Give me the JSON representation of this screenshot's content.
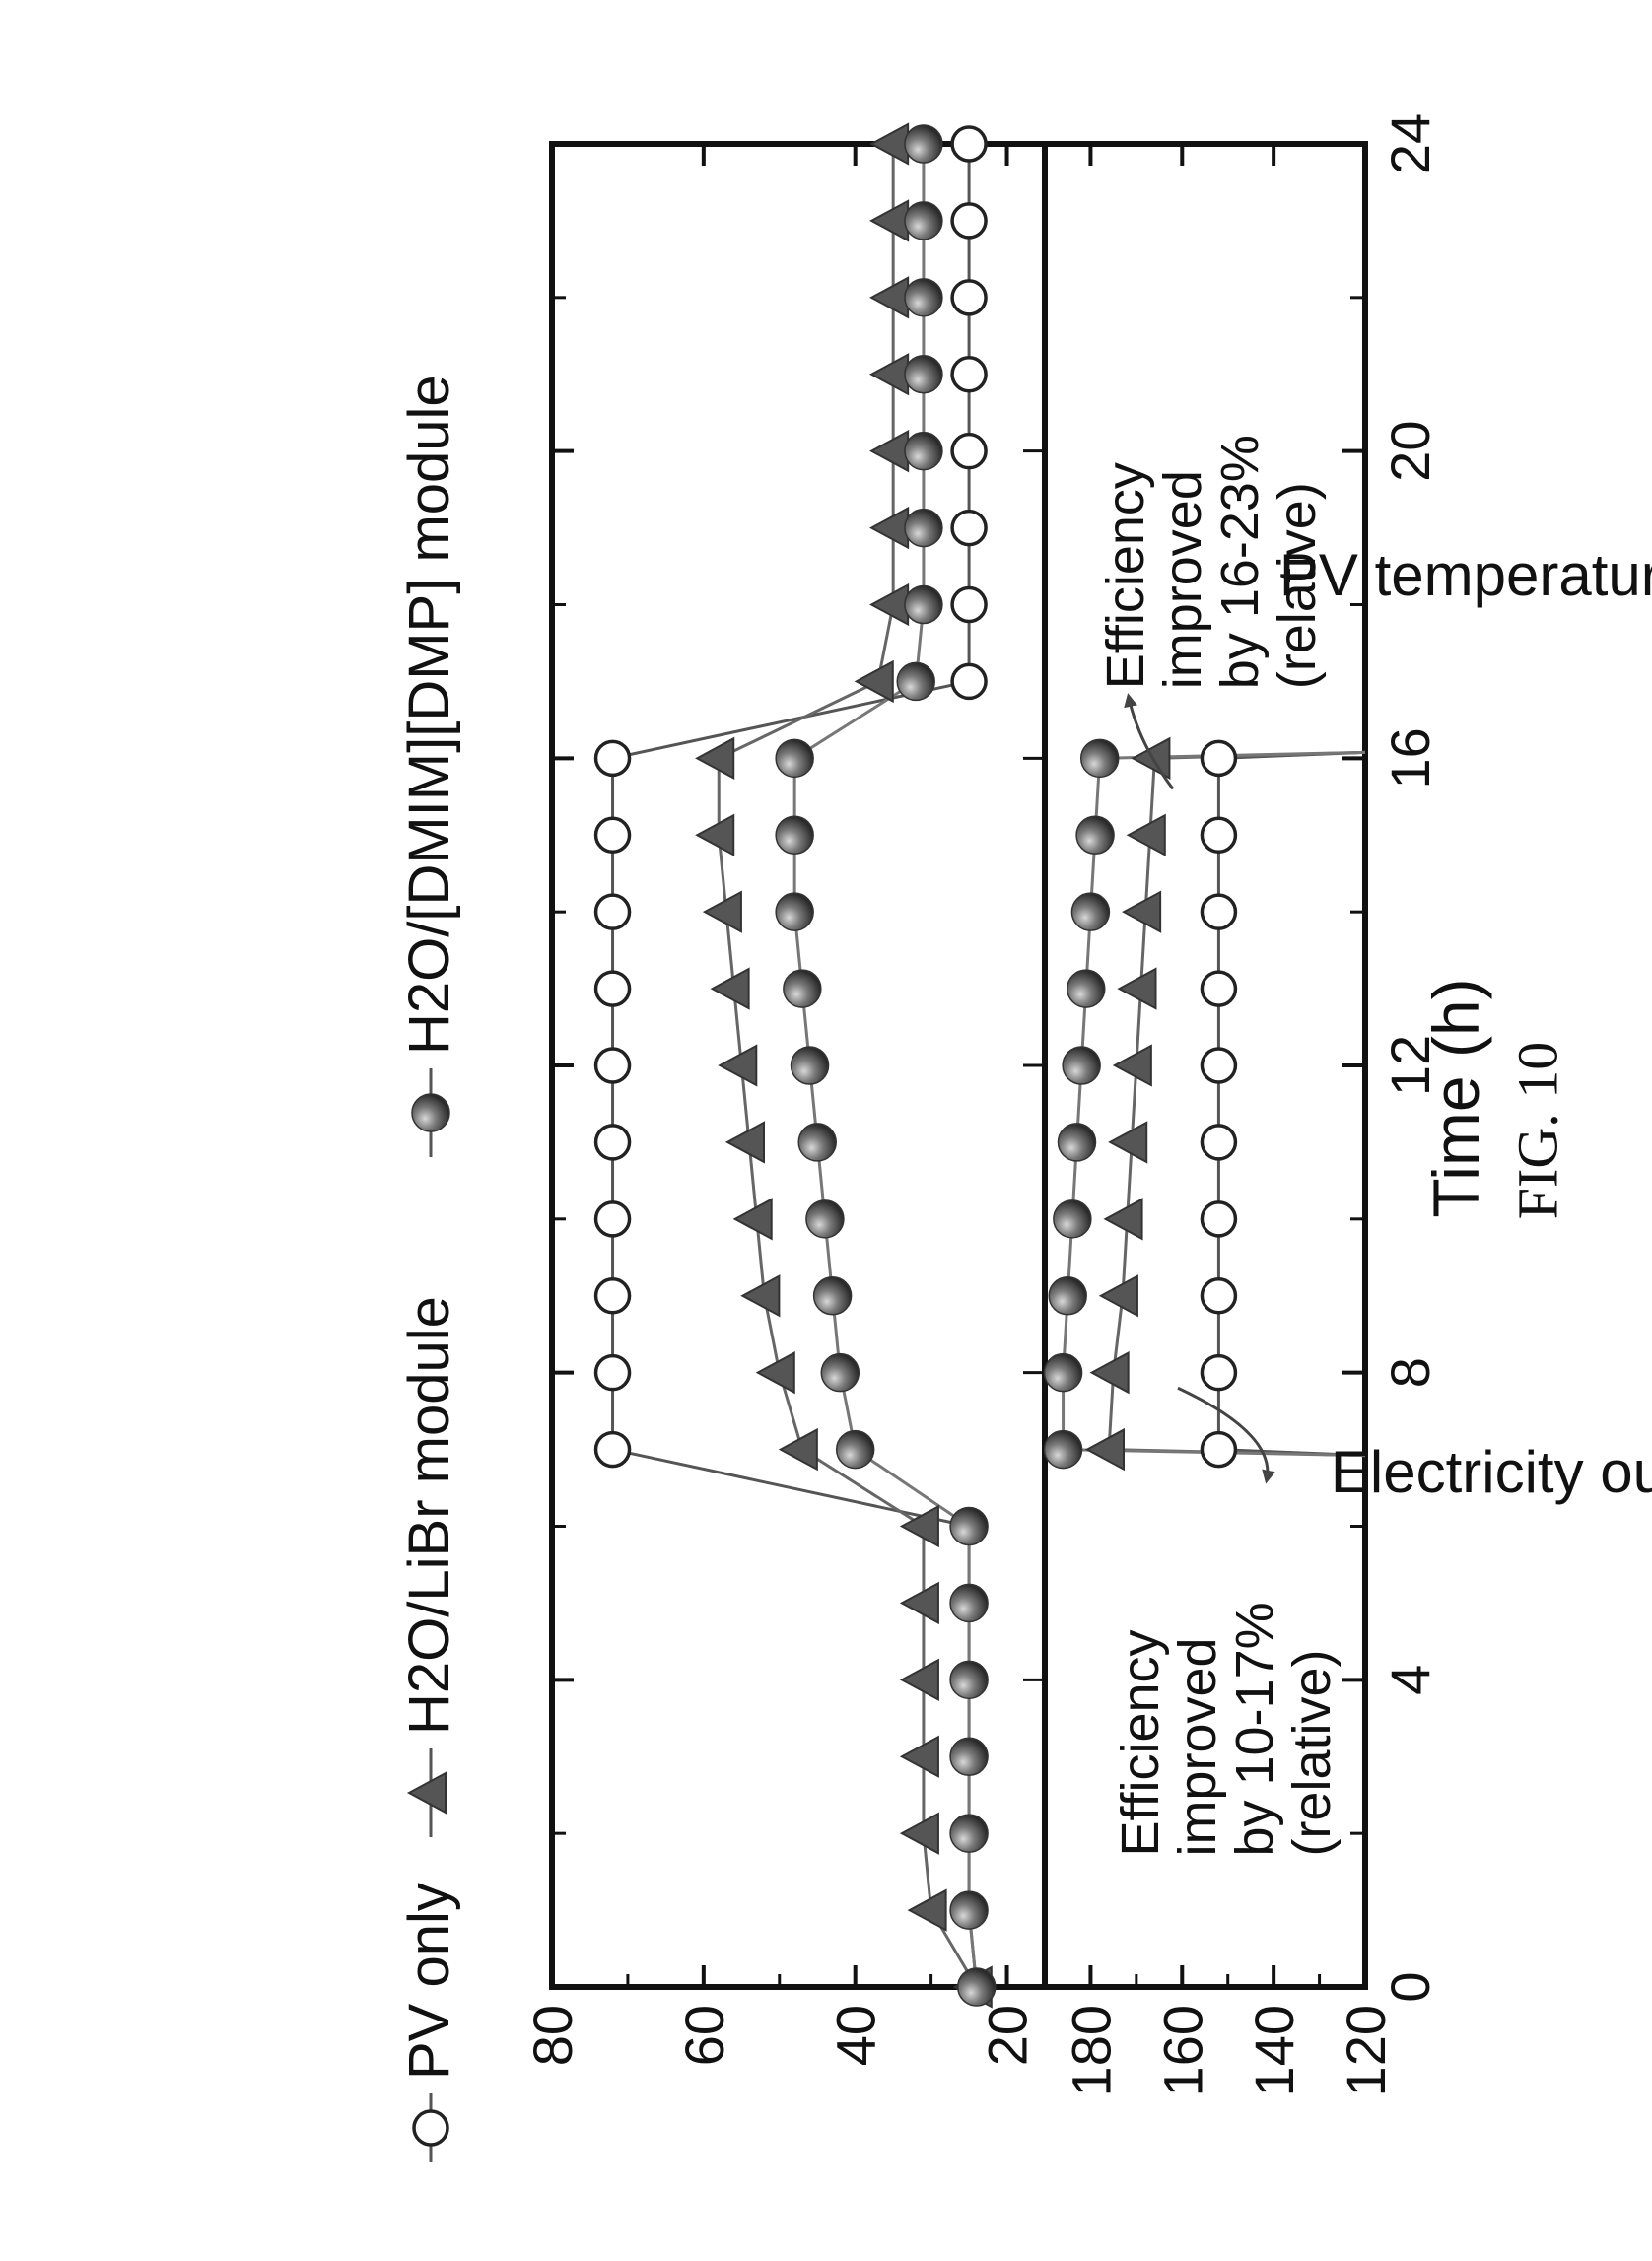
{
  "figure_caption": "FIG. 10",
  "chart_data": {
    "type": "line",
    "xlabel": "Time (h)",
    "xlim": [
      0,
      24
    ],
    "xticks": [
      0,
      4,
      8,
      12,
      16,
      20,
      24
    ],
    "legend": {
      "placement": "top",
      "entries": [
        {
          "label": "PV only",
          "marker": "open-circle"
        },
        {
          "label": "H2O/LiBr module",
          "marker": "filled-triangle"
        },
        {
          "label": "H2O/[DMIM][DMP] module",
          "marker": "filled-sphere"
        }
      ]
    },
    "panels": [
      {
        "id": "temperature",
        "ylabel": "PV temperature (°C)",
        "ylim": [
          15,
          80
        ],
        "yticks": [
          20,
          40,
          60,
          80
        ],
        "series": [
          {
            "name": "PV only",
            "x": [
              0,
              1,
              2,
              3,
              4,
              5,
              6,
              7,
              8,
              9,
              10,
              11,
              12,
              13,
              14,
              15,
              16,
              17,
              18,
              19,
              20,
              21,
              22,
              23,
              24
            ],
            "values": [
              24,
              25,
              25,
              25,
              25,
              25,
              25,
              72,
              72,
              72,
              72,
              72,
              72,
              72,
              72,
              72,
              72,
              25,
              25,
              25,
              25,
              25,
              25,
              25,
              25
            ]
          },
          {
            "name": "H2O/LiBr module",
            "x": [
              0,
              1,
              2,
              3,
              4,
              5,
              6,
              7,
              8,
              9,
              10,
              11,
              12,
              13,
              14,
              15,
              16,
              17,
              18,
              19,
              20,
              21,
              22,
              23,
              24
            ],
            "values": [
              24,
              30,
              31,
              31,
              31,
              31,
              31,
              47,
              50,
              52,
              53,
              54,
              55,
              56,
              57,
              58,
              58,
              37,
              35,
              35,
              35,
              35,
              35,
              35,
              35
            ]
          },
          {
            "name": "H2O/[DMIM][DMP] module",
            "x": [
              0,
              1,
              2,
              3,
              4,
              5,
              6,
              7,
              8,
              9,
              10,
              11,
              12,
              13,
              14,
              15,
              16,
              17,
              18,
              19,
              20,
              21,
              22,
              23,
              24
            ],
            "values": [
              24,
              25,
              25,
              25,
              25,
              25,
              25,
              40,
              42,
              43,
              44,
              45,
              46,
              47,
              48,
              48,
              48,
              32,
              31,
              31,
              31,
              31,
              31,
              31,
              31
            ]
          }
        ]
      },
      {
        "id": "electricity",
        "ylabel": "Electricity output",
        "ylim": [
          120,
          190
        ],
        "yticks": [
          120,
          140,
          160,
          180
        ],
        "series": [
          {
            "name": "PV only",
            "x": [
              7,
              8,
              9,
              10,
              11,
              12,
              13,
              14,
              15,
              16
            ],
            "values": [
              152,
              152,
              152,
              152,
              152,
              152,
              152,
              152,
              152,
              152
            ]
          },
          {
            "name": "H2O/LiBr module",
            "x": [
              7,
              8,
              9,
              10,
              11,
              12,
              13,
              14,
              15,
              16
            ],
            "values": [
              176,
              175,
              173,
              172,
              171,
              170,
              169,
              168,
              167,
              166
            ]
          },
          {
            "name": "H2O/[DMIM][DMP] module",
            "x": [
              7,
              8,
              9,
              10,
              11,
              12,
              13,
              14,
              15,
              16
            ],
            "values": [
              186,
              186,
              185,
              184,
              183,
              182,
              181,
              180,
              179,
              178
            ]
          }
        ],
        "annotations": [
          {
            "lines": [
              "Efficiency",
              "improved",
              "by 10-17%",
              "(relative)"
            ]
          },
          {
            "lines": [
              "Efficiency",
              "improved",
              "by 16-23%",
              "(relative)"
            ]
          }
        ]
      }
    ]
  }
}
